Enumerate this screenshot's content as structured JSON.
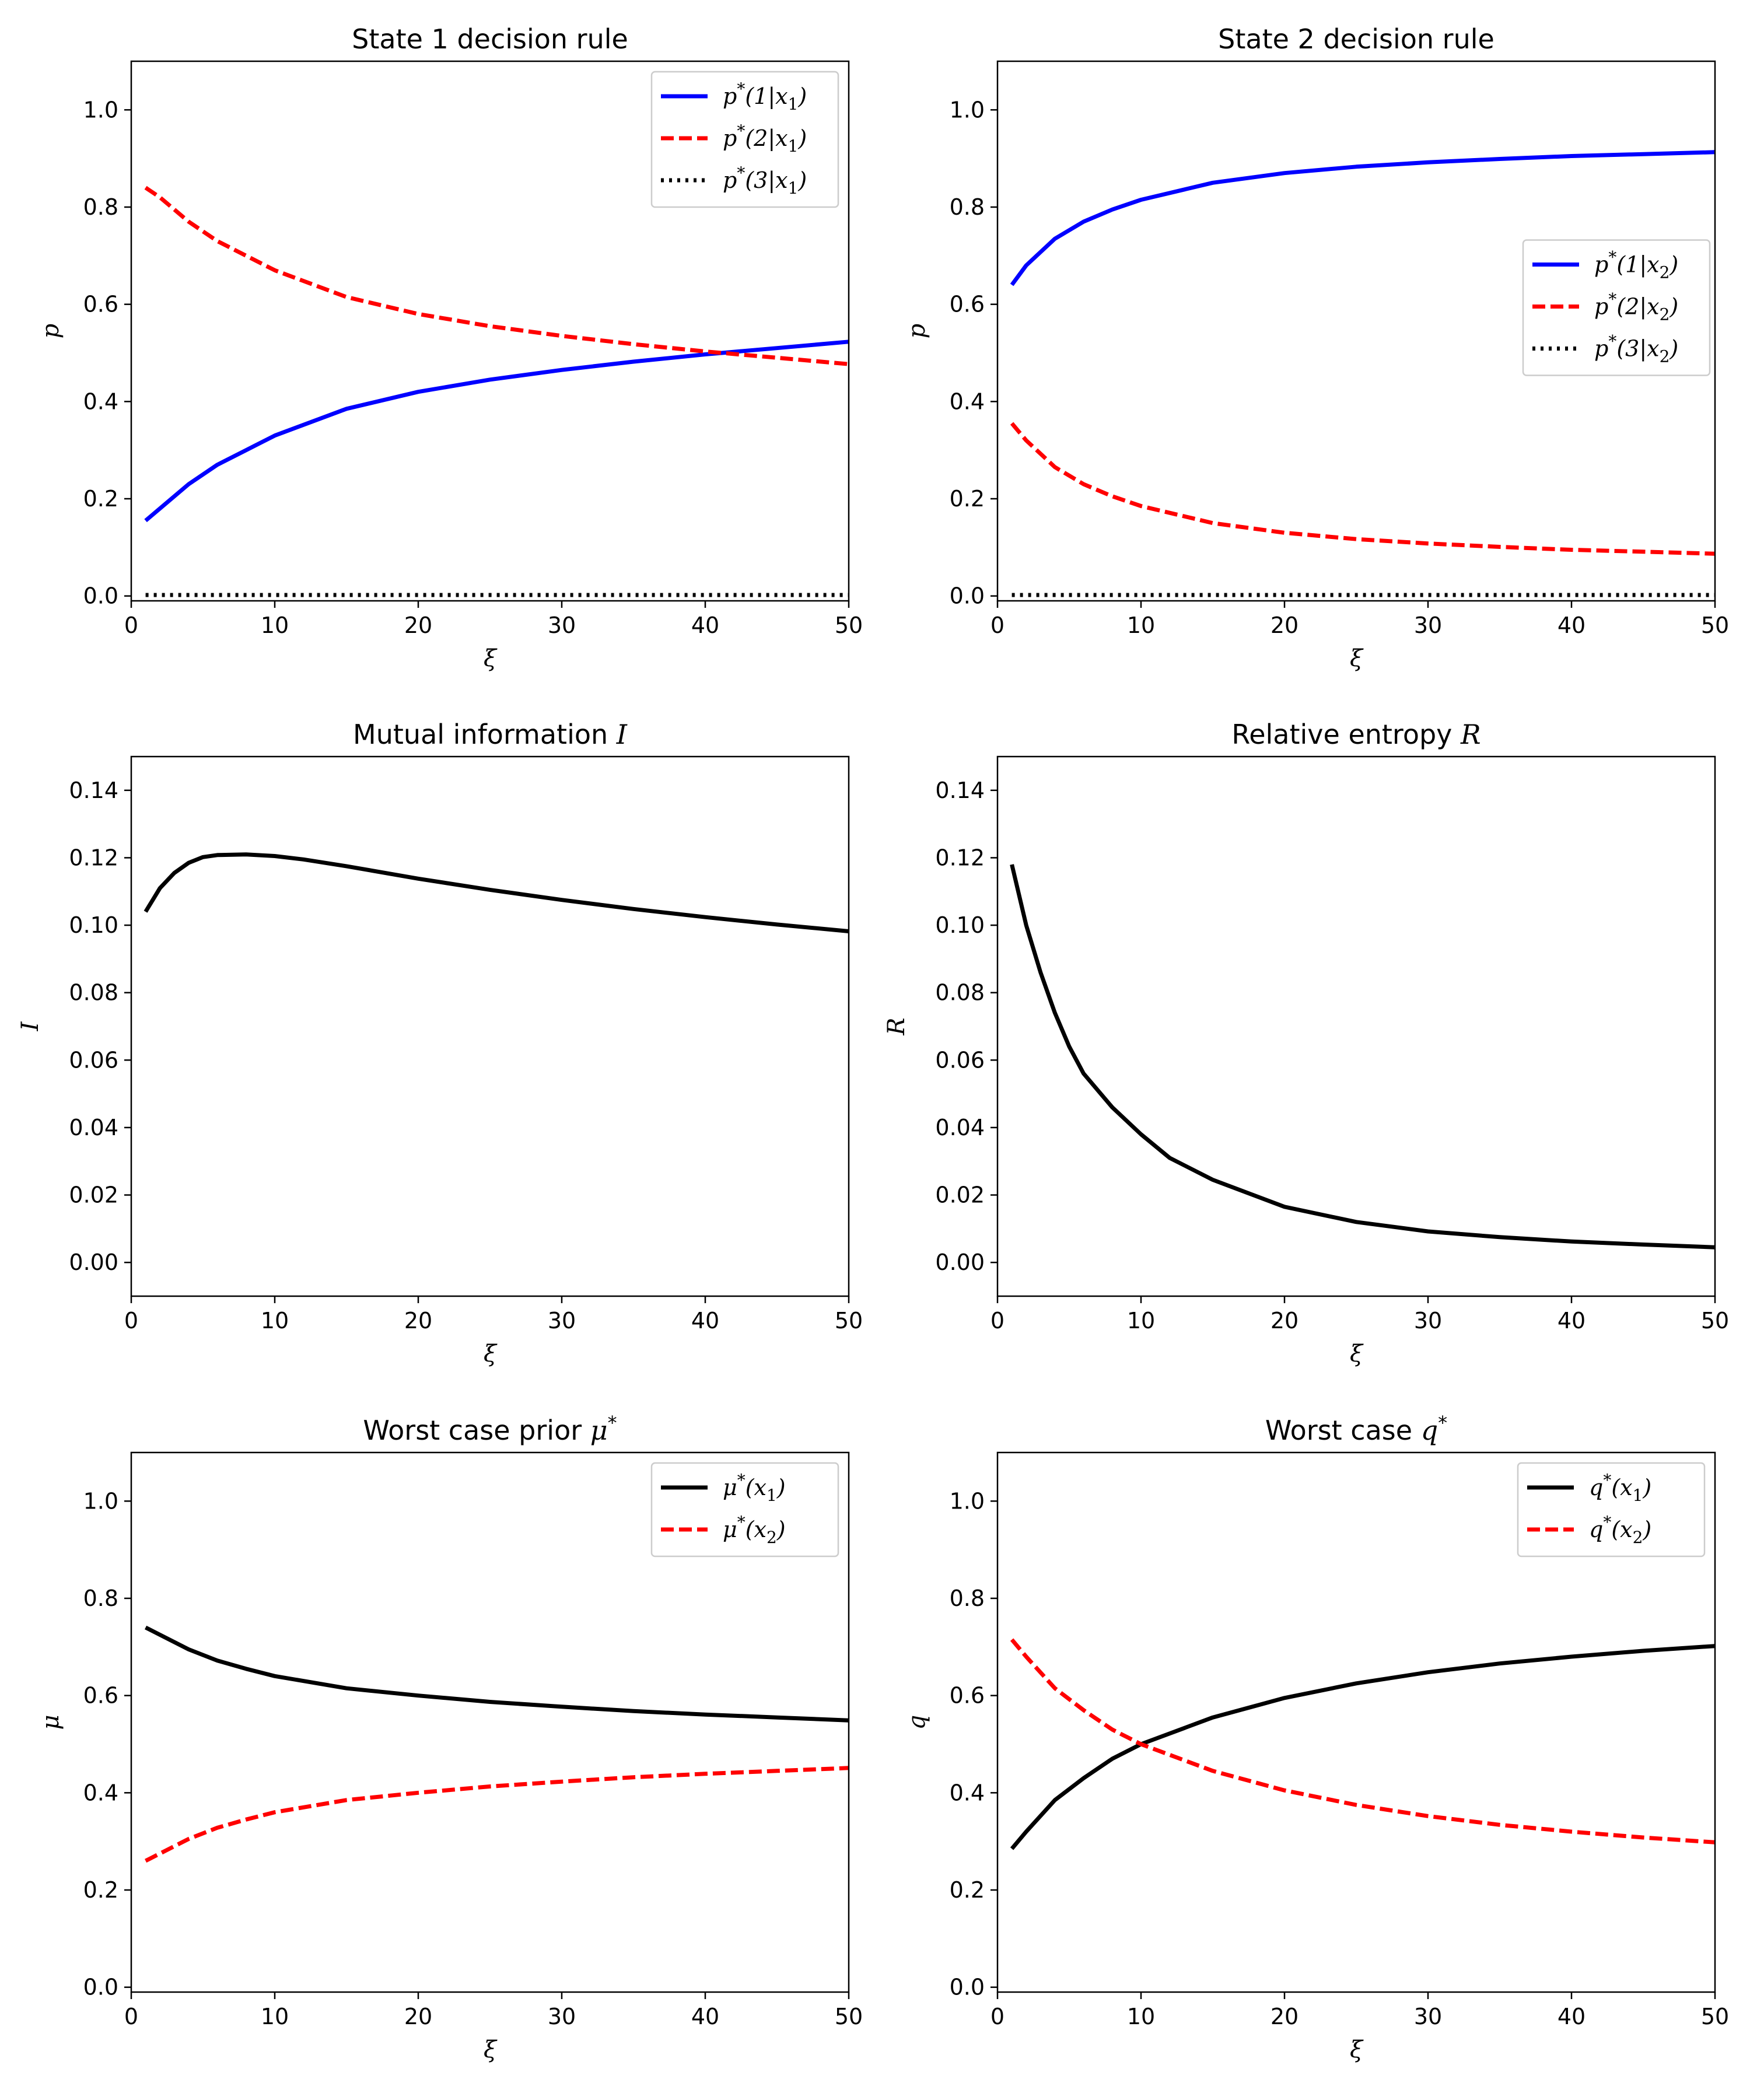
{
  "figure": {
    "columns": 2,
    "rows": 3
  },
  "chart_data": [
    {
      "type": "line",
      "title": "State 1 decision rule",
      "xlabel": "ξ",
      "ylabel": "p",
      "xlim": [
        0,
        50
      ],
      "ylim": [
        -0.01,
        1.1
      ],
      "xticks": [
        0,
        10,
        20,
        30,
        40,
        50
      ],
      "xtick_labels": [
        "0",
        "10",
        "20",
        "30",
        "40",
        "50"
      ],
      "yticks": [
        0.0,
        0.2,
        0.4,
        0.6,
        0.8,
        1.0
      ],
      "ytick_labels": [
        "0.0",
        "0.2",
        "0.4",
        "0.6",
        "0.8",
        "1.0"
      ],
      "legend_position": "upper-right",
      "x": [
        1,
        2,
        4,
        6,
        8,
        10,
        15,
        20,
        25,
        30,
        35,
        40,
        45,
        50
      ],
      "series": [
        {
          "name": "p*(1|x1)",
          "legend": [
            "p",
            "*",
            "(1|x",
            "1",
            ")"
          ],
          "color": "#0000ff",
          "dash": "solid",
          "values": [
            0.155,
            0.18,
            0.23,
            0.27,
            0.3,
            0.33,
            0.385,
            0.42,
            0.445,
            0.465,
            0.482,
            0.497,
            0.51,
            0.523
          ]
        },
        {
          "name": "p*(2|x1)",
          "legend": [
            "p",
            "*",
            "(2|x",
            "1",
            ")"
          ],
          "color": "#ff0000",
          "dash": "dashed",
          "values": [
            0.84,
            0.82,
            0.77,
            0.73,
            0.7,
            0.67,
            0.615,
            0.58,
            0.555,
            0.535,
            0.518,
            0.503,
            0.49,
            0.477
          ]
        },
        {
          "name": "p*(3|x1)",
          "legend": [
            "p",
            "*",
            "(3|x",
            "1",
            ")"
          ],
          "color": "#000000",
          "dash": "dotted",
          "values": [
            0.002,
            0.002,
            0.002,
            0.002,
            0.002,
            0.002,
            0.002,
            0.002,
            0.002,
            0.002,
            0.002,
            0.002,
            0.002,
            0.002
          ]
        }
      ]
    },
    {
      "type": "line",
      "title": "State 2 decision rule",
      "xlabel": "ξ",
      "ylabel": "p",
      "xlim": [
        0,
        50
      ],
      "ylim": [
        -0.01,
        1.1
      ],
      "xticks": [
        0,
        10,
        20,
        30,
        40,
        50
      ],
      "xtick_labels": [
        "0",
        "10",
        "20",
        "30",
        "40",
        "50"
      ],
      "yticks": [
        0.0,
        0.2,
        0.4,
        0.6,
        0.8,
        1.0
      ],
      "ytick_labels": [
        "0.0",
        "0.2",
        "0.4",
        "0.6",
        "0.8",
        "1.0"
      ],
      "legend_position": "center-right",
      "x": [
        1,
        2,
        4,
        6,
        8,
        10,
        15,
        20,
        25,
        30,
        35,
        40,
        45,
        50
      ],
      "series": [
        {
          "name": "p*(1|x2)",
          "legend": [
            "p",
            "*",
            "(1|x",
            "2",
            ")"
          ],
          "color": "#0000ff",
          "dash": "solid",
          "values": [
            0.64,
            0.68,
            0.735,
            0.77,
            0.795,
            0.815,
            0.85,
            0.87,
            0.883,
            0.892,
            0.899,
            0.905,
            0.909,
            0.913
          ]
        },
        {
          "name": "p*(2|x2)",
          "legend": [
            "p",
            "*",
            "(2|x",
            "2",
            ")"
          ],
          "color": "#ff0000",
          "dash": "dashed",
          "values": [
            0.355,
            0.32,
            0.265,
            0.23,
            0.205,
            0.185,
            0.15,
            0.13,
            0.117,
            0.108,
            0.101,
            0.095,
            0.091,
            0.087
          ]
        },
        {
          "name": "p*(3|x2)",
          "legend": [
            "p",
            "*",
            "(3|x",
            "2",
            ")"
          ],
          "color": "#000000",
          "dash": "dotted",
          "values": [
            0.002,
            0.002,
            0.002,
            0.002,
            0.002,
            0.002,
            0.002,
            0.002,
            0.002,
            0.002,
            0.002,
            0.002,
            0.002,
            0.002
          ]
        }
      ]
    },
    {
      "type": "line",
      "title": "Mutual information I",
      "title_parts": [
        "Mutual information ",
        "I"
      ],
      "xlabel": "ξ",
      "ylabel": "I",
      "xlim": [
        0,
        50
      ],
      "ylim": [
        -0.01,
        0.15
      ],
      "xticks": [
        0,
        10,
        20,
        30,
        40,
        50
      ],
      "xtick_labels": [
        "0",
        "10",
        "20",
        "30",
        "40",
        "50"
      ],
      "yticks": [
        0.0,
        0.02,
        0.04,
        0.06,
        0.08,
        0.1,
        0.12,
        0.14
      ],
      "ytick_labels": [
        "0.00",
        "0.02",
        "0.04",
        "0.06",
        "0.08",
        "0.10",
        "0.12",
        "0.14"
      ],
      "legend_position": "none",
      "x": [
        1,
        2,
        3,
        4,
        5,
        6,
        8,
        10,
        12,
        15,
        20,
        25,
        30,
        35,
        40,
        45,
        50
      ],
      "series": [
        {
          "name": "I",
          "color": "#000000",
          "dash": "solid",
          "values": [
            0.104,
            0.111,
            0.1155,
            0.1185,
            0.1202,
            0.1208,
            0.121,
            0.1205,
            0.1195,
            0.1175,
            0.1138,
            0.1105,
            0.1075,
            0.1048,
            0.1024,
            0.1002,
            0.0982
          ]
        }
      ]
    },
    {
      "type": "line",
      "title": "Relative entropy R",
      "title_parts": [
        "Relative entropy ",
        "R"
      ],
      "xlabel": "ξ",
      "ylabel": "R",
      "xlim": [
        0,
        50
      ],
      "ylim": [
        -0.01,
        0.15
      ],
      "xticks": [
        0,
        10,
        20,
        30,
        40,
        50
      ],
      "xtick_labels": [
        "0",
        "10",
        "20",
        "30",
        "40",
        "50"
      ],
      "yticks": [
        0.0,
        0.02,
        0.04,
        0.06,
        0.08,
        0.1,
        0.12,
        0.14
      ],
      "ytick_labels": [
        "0.00",
        "0.02",
        "0.04",
        "0.06",
        "0.08",
        "0.10",
        "0.12",
        "0.14"
      ],
      "legend_position": "none",
      "x": [
        1,
        2,
        3,
        4,
        5,
        6,
        8,
        10,
        12,
        15,
        20,
        25,
        30,
        35,
        40,
        45,
        50
      ],
      "series": [
        {
          "name": "R",
          "color": "#000000",
          "dash": "solid",
          "values": [
            0.118,
            0.1,
            0.086,
            0.074,
            0.064,
            0.056,
            0.046,
            0.038,
            0.031,
            0.0245,
            0.0165,
            0.012,
            0.0092,
            0.0075,
            0.0062,
            0.0053,
            0.0045
          ]
        }
      ]
    },
    {
      "type": "line",
      "title": "Worst case prior μ*",
      "title_parts": [
        "Worst case prior ",
        "μ",
        "*"
      ],
      "xlabel": "ξ",
      "ylabel": "μ",
      "xlim": [
        0,
        50
      ],
      "ylim": [
        -0.01,
        1.1
      ],
      "xticks": [
        0,
        10,
        20,
        30,
        40,
        50
      ],
      "xtick_labels": [
        "0",
        "10",
        "20",
        "30",
        "40",
        "50"
      ],
      "yticks": [
        0.0,
        0.2,
        0.4,
        0.6,
        0.8,
        1.0
      ],
      "ytick_labels": [
        "0.0",
        "0.2",
        "0.4",
        "0.6",
        "0.8",
        "1.0"
      ],
      "legend_position": "upper-right",
      "x": [
        1,
        2,
        4,
        6,
        8,
        10,
        15,
        20,
        25,
        30,
        35,
        40,
        45,
        50
      ],
      "series": [
        {
          "name": "μ*(x1)",
          "legend": [
            "μ",
            "*",
            "(x",
            "1",
            ")"
          ],
          "color": "#000000",
          "dash": "solid",
          "values": [
            0.74,
            0.725,
            0.695,
            0.672,
            0.655,
            0.64,
            0.615,
            0.6,
            0.587,
            0.577,
            0.568,
            0.561,
            0.555,
            0.549
          ]
        },
        {
          "name": "μ*(x2)",
          "legend": [
            "μ",
            "*",
            "(x",
            "2",
            ")"
          ],
          "color": "#ff0000",
          "dash": "dashed",
          "values": [
            0.26,
            0.275,
            0.305,
            0.328,
            0.345,
            0.36,
            0.385,
            0.4,
            0.413,
            0.423,
            0.432,
            0.439,
            0.445,
            0.451
          ]
        }
      ]
    },
    {
      "type": "line",
      "title": "Worst case q*",
      "title_parts": [
        "Worst case ",
        "q",
        "*"
      ],
      "xlabel": "ξ",
      "ylabel": "q",
      "xlim": [
        0,
        50
      ],
      "ylim": [
        -0.01,
        1.1
      ],
      "xticks": [
        0,
        10,
        20,
        30,
        40,
        50
      ],
      "xtick_labels": [
        "0",
        "10",
        "20",
        "30",
        "40",
        "50"
      ],
      "yticks": [
        0.0,
        0.2,
        0.4,
        0.6,
        0.8,
        1.0
      ],
      "ytick_labels": [
        "0.0",
        "0.2",
        "0.4",
        "0.6",
        "0.8",
        "1.0"
      ],
      "legend_position": "upper-right",
      "x": [
        1,
        2,
        4,
        6,
        8,
        10,
        15,
        20,
        25,
        30,
        35,
        40,
        45,
        50
      ],
      "series": [
        {
          "name": "q*(x1)",
          "legend": [
            "q",
            "*",
            "(x",
            "1",
            ")"
          ],
          "color": "#000000",
          "dash": "solid",
          "values": [
            0.285,
            0.32,
            0.385,
            0.43,
            0.47,
            0.5,
            0.555,
            0.595,
            0.625,
            0.648,
            0.666,
            0.68,
            0.692,
            0.702
          ]
        },
        {
          "name": "q*(x2)",
          "legend": [
            "q",
            "*",
            "(x",
            "2",
            ")"
          ],
          "color": "#ff0000",
          "dash": "dashed",
          "values": [
            0.715,
            0.68,
            0.615,
            0.57,
            0.53,
            0.5,
            0.445,
            0.405,
            0.375,
            0.352,
            0.334,
            0.32,
            0.308,
            0.298
          ]
        }
      ]
    }
  ]
}
